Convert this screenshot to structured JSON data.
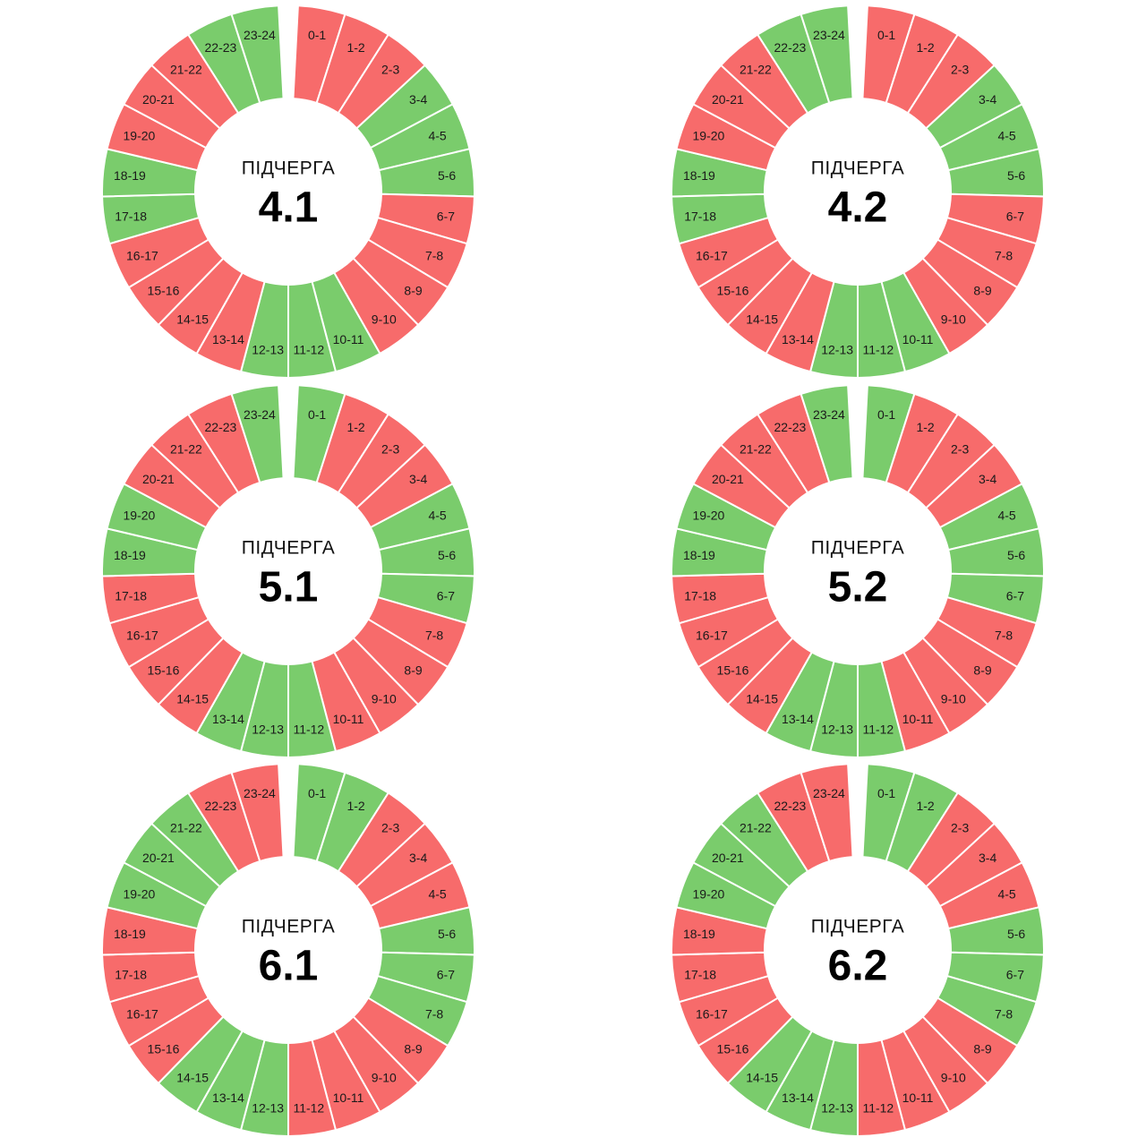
{
  "colors": {
    "on": "#7acc6c",
    "off": "#f76b6b",
    "separator": "#ffffff"
  },
  "hour_labels": [
    "0-1",
    "1-2",
    "2-3",
    "3-4",
    "4-5",
    "5-6",
    "6-7",
    "7-8",
    "8-9",
    "9-10",
    "10-11",
    "11-12",
    "12-13",
    "13-14",
    "14-15",
    "15-16",
    "16-17",
    "17-18",
    "18-19",
    "19-20",
    "20-21",
    "21-22",
    "22-23",
    "23-24"
  ],
  "chart_data": [
    {
      "type": "pie",
      "caption": "ПІДЧЕРГА",
      "number": "4.1",
      "slots": [
        "off",
        "off",
        "off",
        "on",
        "on",
        "on",
        "off",
        "off",
        "off",
        "off",
        "on",
        "on",
        "on",
        "off",
        "off",
        "off",
        "off",
        "on",
        "on",
        "off",
        "off",
        "off",
        "on",
        "on"
      ]
    },
    {
      "type": "pie",
      "caption": "ПІДЧЕРГА",
      "number": "4.2",
      "slots": [
        "off",
        "off",
        "off",
        "on",
        "on",
        "on",
        "off",
        "off",
        "off",
        "off",
        "on",
        "on",
        "on",
        "off",
        "off",
        "off",
        "off",
        "on",
        "on",
        "off",
        "off",
        "off",
        "on",
        "on"
      ]
    },
    {
      "type": "pie",
      "caption": "ПІДЧЕРГА",
      "number": "5.1",
      "slots": [
        "on",
        "off",
        "off",
        "off",
        "on",
        "on",
        "on",
        "off",
        "off",
        "off",
        "off",
        "on",
        "on",
        "on",
        "off",
        "off",
        "off",
        "off",
        "on",
        "on",
        "off",
        "off",
        "off",
        "on"
      ]
    },
    {
      "type": "pie",
      "caption": "ПІДЧЕРГА",
      "number": "5.2",
      "slots": [
        "on",
        "off",
        "off",
        "off",
        "on",
        "on",
        "on",
        "off",
        "off",
        "off",
        "off",
        "on",
        "on",
        "on",
        "off",
        "off",
        "off",
        "off",
        "on",
        "on",
        "off",
        "off",
        "off",
        "on"
      ]
    },
    {
      "type": "pie",
      "caption": "ПІДЧЕРГА",
      "number": "6.1",
      "slots": [
        "on",
        "on",
        "off",
        "off",
        "off",
        "on",
        "on",
        "on",
        "off",
        "off",
        "off",
        "off",
        "on",
        "on",
        "on",
        "off",
        "off",
        "off",
        "off",
        "on",
        "on",
        "on",
        "off",
        "off"
      ]
    },
    {
      "type": "pie",
      "caption": "ПІДЧЕРГА",
      "number": "6.2",
      "slots": [
        "on",
        "on",
        "off",
        "off",
        "off",
        "on",
        "on",
        "on",
        "off",
        "off",
        "off",
        "off",
        "on",
        "on",
        "on",
        "off",
        "off",
        "off",
        "off",
        "on",
        "on",
        "on",
        "off",
        "off"
      ]
    }
  ]
}
